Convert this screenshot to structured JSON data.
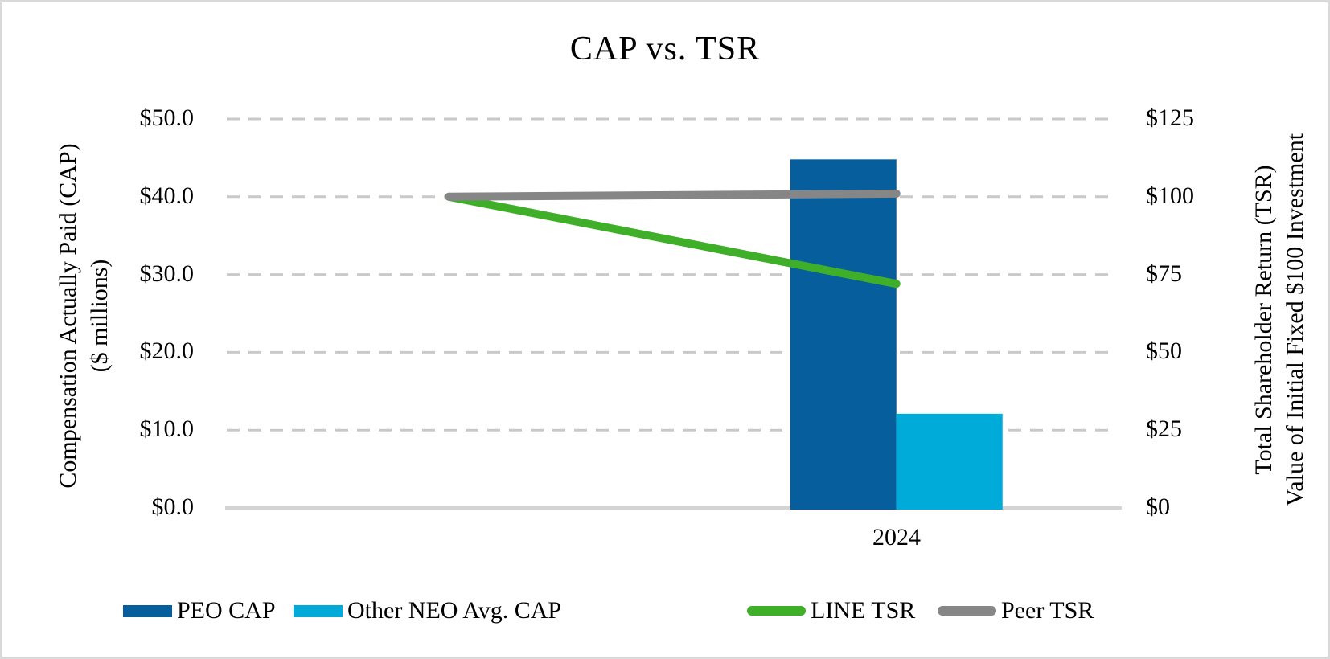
{
  "colors": {
    "grid": "#c9c9c9",
    "axis_line": "#d4d4d4",
    "border": "#d9d9d9",
    "text": "#000000"
  },
  "chart_data": {
    "type": "bar",
    "combo": "clustered bars (left axis) + lines (right axis)",
    "title": "CAP vs. TSR",
    "categories": [
      "",
      "2024"
    ],
    "series": [
      {
        "name": "PEO CAP",
        "type": "bar",
        "axis": "left",
        "color": "#065f9c",
        "values": [
          null,
          44.8
        ]
      },
      {
        "name": "Other NEO Avg. CAP",
        "type": "bar",
        "axis": "left",
        "color": "#00abd9",
        "values": [
          null,
          12.1
        ]
      },
      {
        "name": "LINE TSR",
        "type": "line",
        "axis": "right",
        "color": "#3faf29",
        "values": [
          100,
          72
        ]
      },
      {
        "name": "Peer TSR",
        "type": "line",
        "axis": "right",
        "color": "#868686",
        "values": [
          100,
          101
        ]
      }
    ],
    "left_axis": {
      "label_line1": "Compensation Actually Paid (CAP)",
      "label_line2": "($ millions)",
      "ticks": [
        "$0.0",
        "$10.0",
        "$20.0",
        "$30.0",
        "$40.0",
        "$50.0"
      ],
      "tick_values": [
        0,
        10,
        20,
        30,
        40,
        50
      ],
      "range": [
        0,
        50
      ]
    },
    "right_axis": {
      "label_line1": "Total Shareholder Return (TSR)",
      "label_line2": "Value of Initial Fixed $100 Investment",
      "ticks": [
        "$0",
        "$25",
        "$50",
        "$75",
        "$100",
        "$125"
      ],
      "tick_values": [
        0,
        25,
        50,
        75,
        100,
        125
      ],
      "range": [
        0,
        125
      ]
    },
    "xlabel": "",
    "grid": "horizontal dashed",
    "legend_position": "bottom"
  },
  "legend_note": "legend labels identical to series names"
}
